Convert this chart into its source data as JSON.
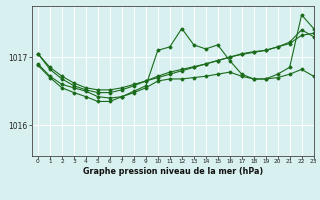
{
  "title": "Graphe pression niveau de la mer (hPa)",
  "bg_color": "#d8f0f0",
  "line_color": "#1a6b1a",
  "grid_color": "#ffffff",
  "xlim": [
    -0.5,
    23
  ],
  "ylim": [
    1015.55,
    1017.75
  ],
  "yticks": [
    1016,
    1017
  ],
  "xticks": [
    0,
    1,
    2,
    3,
    4,
    5,
    6,
    7,
    8,
    9,
    10,
    11,
    12,
    13,
    14,
    15,
    16,
    17,
    18,
    19,
    20,
    21,
    22,
    23
  ],
  "series": [
    [
      1017.05,
      1016.85,
      1016.72,
      1016.62,
      1016.55,
      1016.52,
      1016.52,
      1016.55,
      1016.6,
      1016.65,
      1016.7,
      1016.75,
      1016.8,
      1016.85,
      1016.9,
      1016.95,
      1017.0,
      1017.05,
      1017.08,
      1017.1,
      1017.15,
      1017.2,
      1017.32,
      1017.35
    ],
    [
      1017.05,
      1016.82,
      1016.68,
      1016.58,
      1016.52,
      1016.48,
      1016.48,
      1016.52,
      1016.58,
      1016.65,
      1016.72,
      1016.78,
      1016.82,
      1016.86,
      1016.9,
      1016.95,
      1017.0,
      1017.04,
      1017.07,
      1017.1,
      1017.15,
      1017.22,
      1017.4,
      1017.3
    ],
    [
      1016.9,
      1016.72,
      1016.6,
      1016.55,
      1016.5,
      1016.42,
      1016.4,
      1016.42,
      1016.48,
      1016.55,
      1016.65,
      1016.68,
      1016.68,
      1016.7,
      1016.72,
      1016.75,
      1016.78,
      1016.72,
      1016.68,
      1016.68,
      1016.7,
      1016.75,
      1016.82,
      1016.72
    ],
    [
      1016.88,
      1016.7,
      1016.55,
      1016.48,
      1016.42,
      1016.35,
      1016.35,
      1016.42,
      1016.5,
      1016.58,
      1017.1,
      1017.15,
      1017.42,
      1017.18,
      1017.12,
      1017.18,
      1016.95,
      1016.75,
      1016.68,
      1016.68,
      1016.75,
      1016.85,
      1017.62,
      1017.42
    ]
  ]
}
